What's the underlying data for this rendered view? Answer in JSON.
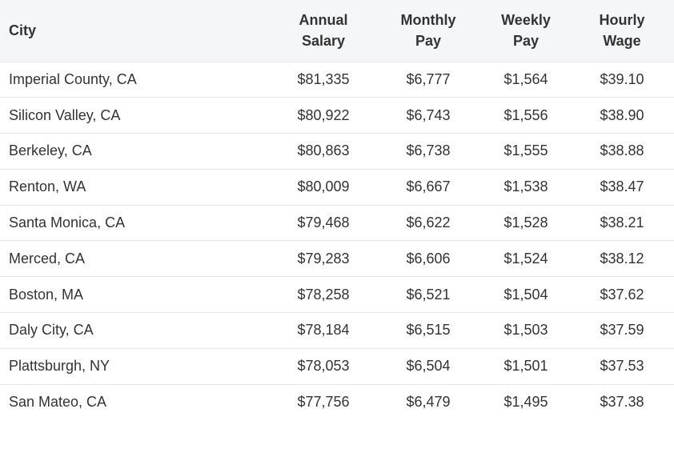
{
  "table": {
    "headers": {
      "city": "City",
      "annual": [
        "Annual",
        "Salary"
      ],
      "monthly": [
        "Monthly",
        "Pay"
      ],
      "weekly": [
        "Weekly",
        "Pay"
      ],
      "hourly": [
        "Hourly",
        "Wage"
      ]
    },
    "rows": [
      {
        "city": "Imperial County, CA",
        "annual": "$81,335",
        "monthly": "$6,777",
        "weekly": "$1,564",
        "hourly": "$39.10"
      },
      {
        "city": "Silicon Valley, CA",
        "annual": "$80,922",
        "monthly": "$6,743",
        "weekly": "$1,556",
        "hourly": "$38.90"
      },
      {
        "city": "Berkeley, CA",
        "annual": "$80,863",
        "monthly": "$6,738",
        "weekly": "$1,555",
        "hourly": "$38.88"
      },
      {
        "city": "Renton, WA",
        "annual": "$80,009",
        "monthly": "$6,667",
        "weekly": "$1,538",
        "hourly": "$38.47"
      },
      {
        "city": "Santa Monica, CA",
        "annual": "$79,468",
        "monthly": "$6,622",
        "weekly": "$1,528",
        "hourly": "$38.21"
      },
      {
        "city": "Merced, CA",
        "annual": "$79,283",
        "monthly": "$6,606",
        "weekly": "$1,524",
        "hourly": "$38.12"
      },
      {
        "city": "Boston, MA",
        "annual": "$78,258",
        "monthly": "$6,521",
        "weekly": "$1,504",
        "hourly": "$37.62"
      },
      {
        "city": "Daly City, CA",
        "annual": "$78,184",
        "monthly": "$6,515",
        "weekly": "$1,503",
        "hourly": "$37.59"
      },
      {
        "city": "Plattsburgh, NY",
        "annual": "$78,053",
        "monthly": "$6,504",
        "weekly": "$1,501",
        "hourly": "$37.53"
      },
      {
        "city": "San Mateo, CA",
        "annual": "$77,756",
        "monthly": "$6,479",
        "weekly": "$1,495",
        "hourly": "$37.38"
      }
    ]
  }
}
